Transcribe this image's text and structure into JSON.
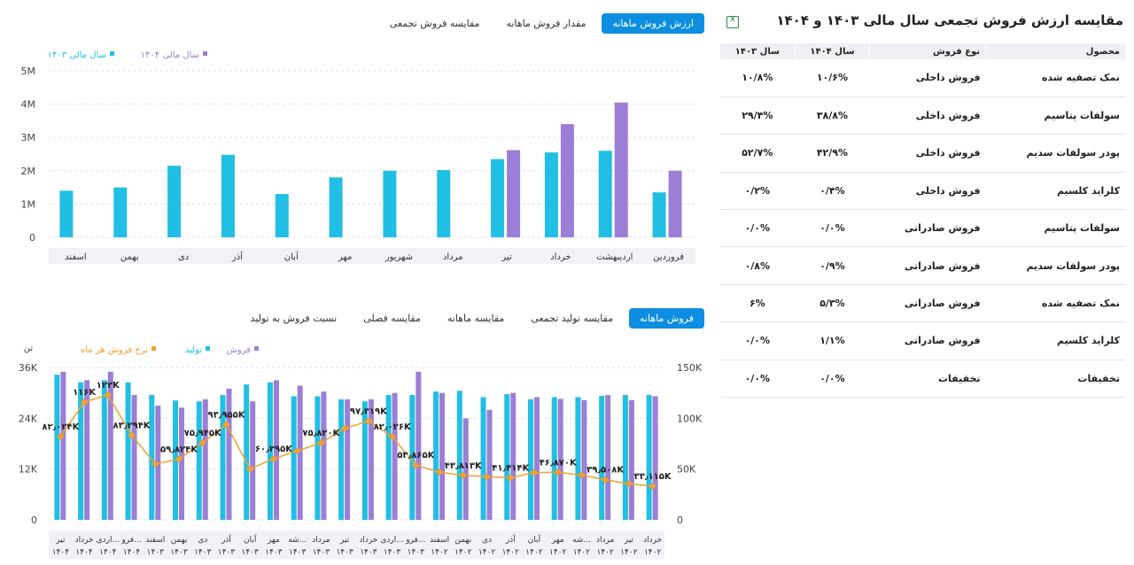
{
  "top_tabs": [
    "ارزش فروش ماهانه",
    "مقدار فروش ماهانه",
    "مقایسه فروش تجمعی"
  ],
  "bottom_tabs": [
    "فروش ماهانه",
    "مقایسه تولید تجمعی",
    "مقایسه ماهانه",
    "مقایسه فصلی",
    "نسبت فروش به تولید"
  ],
  "colors": {
    "cyan": "#21bfe4",
    "purple": "#9b7fd6",
    "orange": "#f0a030",
    "accent": "#0d8ee0"
  },
  "table": {
    "title": "مقایسه ارزش فروش تجمعی سال مالی ۱۴۰۳ و ۱۴۰۴",
    "headers": [
      "محصول",
      "نوع فروش",
      "سال ۱۴۰۴",
      "سال ۱۴۰۳"
    ],
    "rows": [
      [
        "نمک تصفیه شده",
        "فروش داخلی",
        "۱۰/۶%",
        "۱۰/۸%"
      ],
      [
        "سولفات پتاسیم",
        "فروش داخلی",
        "۳۸/۸%",
        "۲۹/۴%"
      ],
      [
        "پودر سولفات سدیم",
        "فروش داخلی",
        "۴۲/۹%",
        "۵۲/۷%"
      ],
      [
        "کلراید کلسیم",
        "فروش داخلی",
        "۰/۴%",
        "۰/۲%"
      ],
      [
        "سولفات پتاسیم",
        "فروش صادراتی",
        "۰/۰%",
        "۰/۰%"
      ],
      [
        "پودر سولفات سدیم",
        "فروش صادراتی",
        "۰/۹%",
        "۰/۸%"
      ],
      [
        "نمک تصفیه شده",
        "فروش صادراتی",
        "۵/۳%",
        "۶%"
      ],
      [
        "کلراید کلسیم",
        "فروش صادراتی",
        "۱/۱%",
        "۰/۰%"
      ],
      [
        "تخفیفات",
        "تخفیفات",
        "۰/۰%",
        "۰/۰%"
      ]
    ]
  },
  "chart_data": [
    {
      "type": "bar",
      "categories": [
        "فروردین",
        "اردیبهشت",
        "خرداد",
        "تیر",
        "مرداد",
        "شهریور",
        "مهر",
        "آبان",
        "آذر",
        "دی",
        "بهمن",
        "اسفند"
      ],
      "series": [
        {
          "name": "سال مالی ۱۴۰۳",
          "color": "#21bfe4",
          "values": [
            1.35,
            2.6,
            2.55,
            2.35,
            2.02,
            2.0,
            1.8,
            1.3,
            2.48,
            2.15,
            1.5,
            1.4
          ]
        },
        {
          "name": "سال مالی ۱۴۰۴",
          "color": "#9b7fd6",
          "values": [
            2.0,
            4.05,
            3.4,
            2.62,
            null,
            null,
            null,
            null,
            null,
            null,
            null,
            null
          ]
        }
      ],
      "yticks": [
        "0",
        "1M",
        "2M",
        "3M",
        "4M",
        "5M"
      ],
      "ylim": [
        0,
        5
      ],
      "legend": "top-left"
    },
    {
      "type": "bar",
      "ylabel": "تن",
      "left_ticks": [
        "0",
        "12K",
        "24K",
        "36K"
      ],
      "right_ticks": [
        "0",
        "50K",
        "100K",
        "150K"
      ],
      "ylim_left": [
        0,
        36
      ],
      "ylim_right": [
        0,
        150
      ],
      "categories": [
        [
          "خرداد",
          "۱۴۰۲"
        ],
        [
          "تیر",
          "۱۴۰۲"
        ],
        [
          "مرداد",
          "۱۴۰۲"
        ],
        [
          "شه...",
          "۱۴۰۲"
        ],
        [
          "مهر",
          "۱۴۰۲"
        ],
        [
          "آبان",
          "۱۴۰۲"
        ],
        [
          "آذر",
          "۱۴۰۲"
        ],
        [
          "دی",
          "۱۴۰۲"
        ],
        [
          "بهمن",
          "۱۴۰۲"
        ],
        [
          "اسفند",
          "۱۴۰۲"
        ],
        [
          "فرو...",
          "۱۴۰۳"
        ],
        [
          "اردی...",
          "۱۴۰۳"
        ],
        [
          "خرداد",
          "۱۴۰۳"
        ],
        [
          "تیر",
          "۱۴۰۳"
        ],
        [
          "مرداد",
          "۱۴۰۳"
        ],
        [
          "شه...",
          "۱۴۰۳"
        ],
        [
          "مهر",
          "۱۴۰۳"
        ],
        [
          "آبان",
          "۱۴۰۳"
        ],
        [
          "آذر",
          "۱۴۰۳"
        ],
        [
          "دی",
          "۱۴۰۳"
        ],
        [
          "بهمن",
          "۱۴۰۳"
        ],
        [
          "اسفند",
          "۱۴۰۳"
        ],
        [
          "فرو...",
          "۱۴۰۴"
        ],
        [
          "اردی...",
          "۱۴۰۴"
        ],
        [
          "خرداد",
          "۱۴۰۴"
        ],
        [
          "تیر",
          "۱۴۰۴"
        ]
      ],
      "series": [
        {
          "name": "تولید",
          "color": "#21bfe4",
          "values": [
            29.5,
            29.5,
            29.3,
            29,
            29,
            28.5,
            29.7,
            29,
            30.5,
            30.3,
            29.5,
            29.5,
            28,
            28.5,
            29.2,
            29.2,
            32.5,
            32,
            29.5,
            28,
            28.2,
            29.5,
            32.5,
            33,
            32.5,
            34.3
          ]
        },
        {
          "name": "فروش",
          "color": "#9b7fd6",
          "values": [
            29.2,
            28.3,
            29.5,
            28.3,
            28.6,
            29,
            30,
            26,
            24,
            30,
            35,
            30,
            28.5,
            28.5,
            30.3,
            31.7,
            33,
            28,
            31,
            28.5,
            26.5,
            27,
            29.5,
            35,
            33,
            35
          ]
        },
        {
          "name": "نرخ فروش هر ماه",
          "color": "#f0a030",
          "values": [
            33.1,
            35.5,
            39.5,
            44,
            46.87,
            46.5,
            41.4,
            42.5,
            43.8,
            47,
            53.9,
            82,
            97.3,
            90,
            75.8,
            68,
            60.3,
            50,
            93.9,
            76,
            59.8,
            55,
            83.3,
            123,
            116,
            82
          ]
        }
      ],
      "point_labels": [
        {
          "index": 0,
          "text": "۳۳٫۱۱۵K"
        },
        {
          "index": 2,
          "text": "۳۹٫۵۰۸K"
        },
        {
          "index": 4,
          "text": "۴۶٫۸۷۰K"
        },
        {
          "index": 6,
          "text": "۴۱٫۴۱۴K"
        },
        {
          "index": 8,
          "text": "۴۳٫۸۱۳K"
        },
        {
          "index": 10,
          "text": "۵۳٫۸۶۵K"
        },
        {
          "index": 11,
          "text": "۸۲٫۰۲۶K"
        },
        {
          "index": 12,
          "text": "۹۷٫۳۱۹K"
        },
        {
          "index": 14,
          "text": "۷۵٫۸۲۰K"
        },
        {
          "index": 16,
          "text": "۶۰٫۲۹۵K"
        },
        {
          "index": 18,
          "text": "۹۳٫۹۵۵K"
        },
        {
          "index": 19,
          "text": "۷۵٫۹۴۵K"
        },
        {
          "index": 20,
          "text": "۵۹٫۸۲۴K"
        },
        {
          "index": 22,
          "text": "۸۳٫۲۹۴K"
        },
        {
          "index": 23,
          "text": "۱۲۲K"
        },
        {
          "index": 24,
          "text": "۱۱۶K"
        },
        {
          "index": 25,
          "text": "۸۲٫۰۲۴K"
        }
      ]
    }
  ]
}
